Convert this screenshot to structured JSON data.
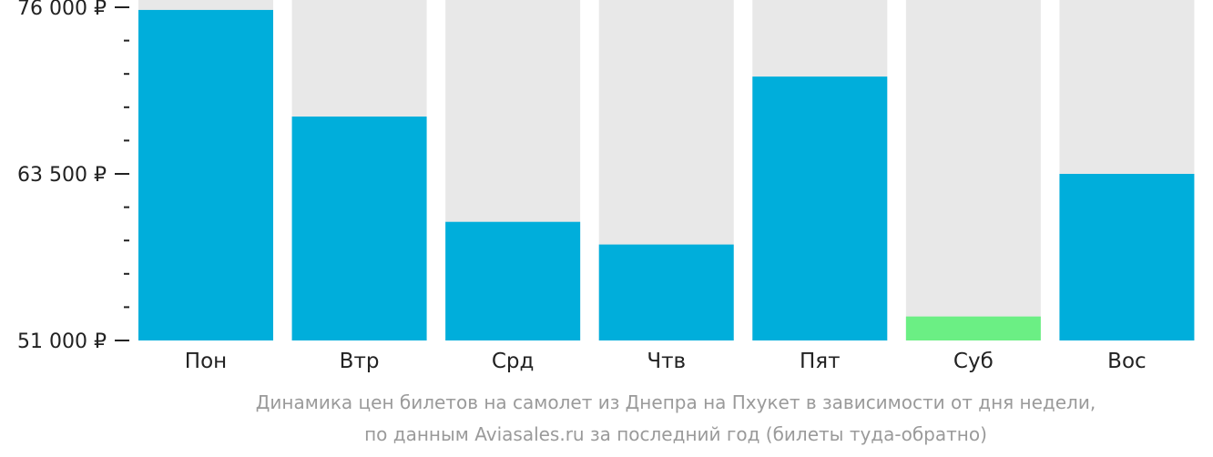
{
  "chart_data": {
    "type": "bar",
    "categories": [
      "Пон",
      "Втр",
      "Срд",
      "Чтв",
      "Пят",
      "Суб",
      "Вос"
    ],
    "values": [
      75800,
      67800,
      59900,
      58200,
      70800,
      52800,
      63500
    ],
    "ylim": [
      51000,
      76000
    ],
    "yticks": [
      51000,
      63500,
      76000
    ],
    "ytick_labels": [
      "51 000 ₽",
      "63 500 ₽",
      "76 000 ₽"
    ],
    "minor_tick_step": 2500,
    "highlight_index": 5,
    "colors": {
      "bar": "#00AEDB",
      "highlight": "#6BEF84",
      "background_bar": "#E8E8E8",
      "axis": "#222222"
    }
  },
  "caption": {
    "line1": "Динамика цен билетов на самолет из Днепра на Пхукет в зависимости от дня недели,",
    "line2": "по данным Aviasales.ru за последний год (билеты туда-обратно)"
  }
}
